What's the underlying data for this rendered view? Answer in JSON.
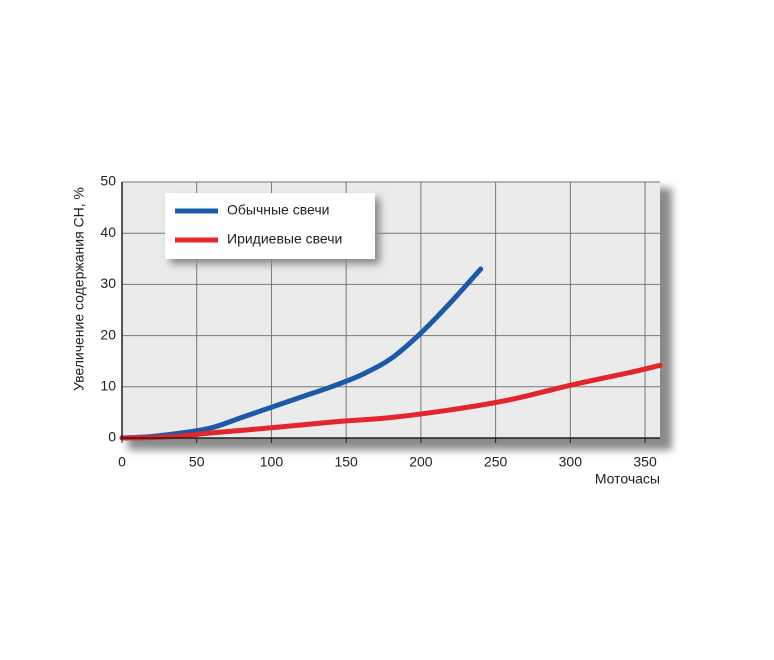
{
  "chart_data": {
    "type": "line",
    "y_label": "Увеличение содержания CH, %",
    "x_label": "Моточасы",
    "xlim": [
      0,
      360
    ],
    "xticks": [
      0,
      50,
      100,
      150,
      200,
      250,
      300,
      350
    ],
    "ylim": [
      0,
      50
    ],
    "yticks": [
      0,
      10,
      20,
      30,
      40,
      50
    ],
    "grid": true,
    "legend": "upper left",
    "series": [
      {
        "name": "Обычные свечи",
        "color": "#1b5aa8",
        "x": [
          0,
          20,
          40,
          60,
          80,
          100,
          120,
          140,
          160,
          180,
          200,
          220,
          240
        ],
        "values": [
          0,
          0.3,
          1,
          2,
          4,
          6,
          8,
          10,
          12.3,
          15.5,
          20.5,
          26.5,
          33
        ]
      },
      {
        "name": "Иридиевые свечи",
        "color": "#e2262c",
        "x": [
          0,
          20,
          40,
          60,
          100,
          140,
          180,
          220,
          260,
          300,
          340,
          360
        ],
        "values": [
          0,
          0.1,
          0.4,
          1,
          2,
          3.1,
          4,
          5.5,
          7.5,
          10.3,
          12.8,
          14.2
        ]
      }
    ]
  }
}
